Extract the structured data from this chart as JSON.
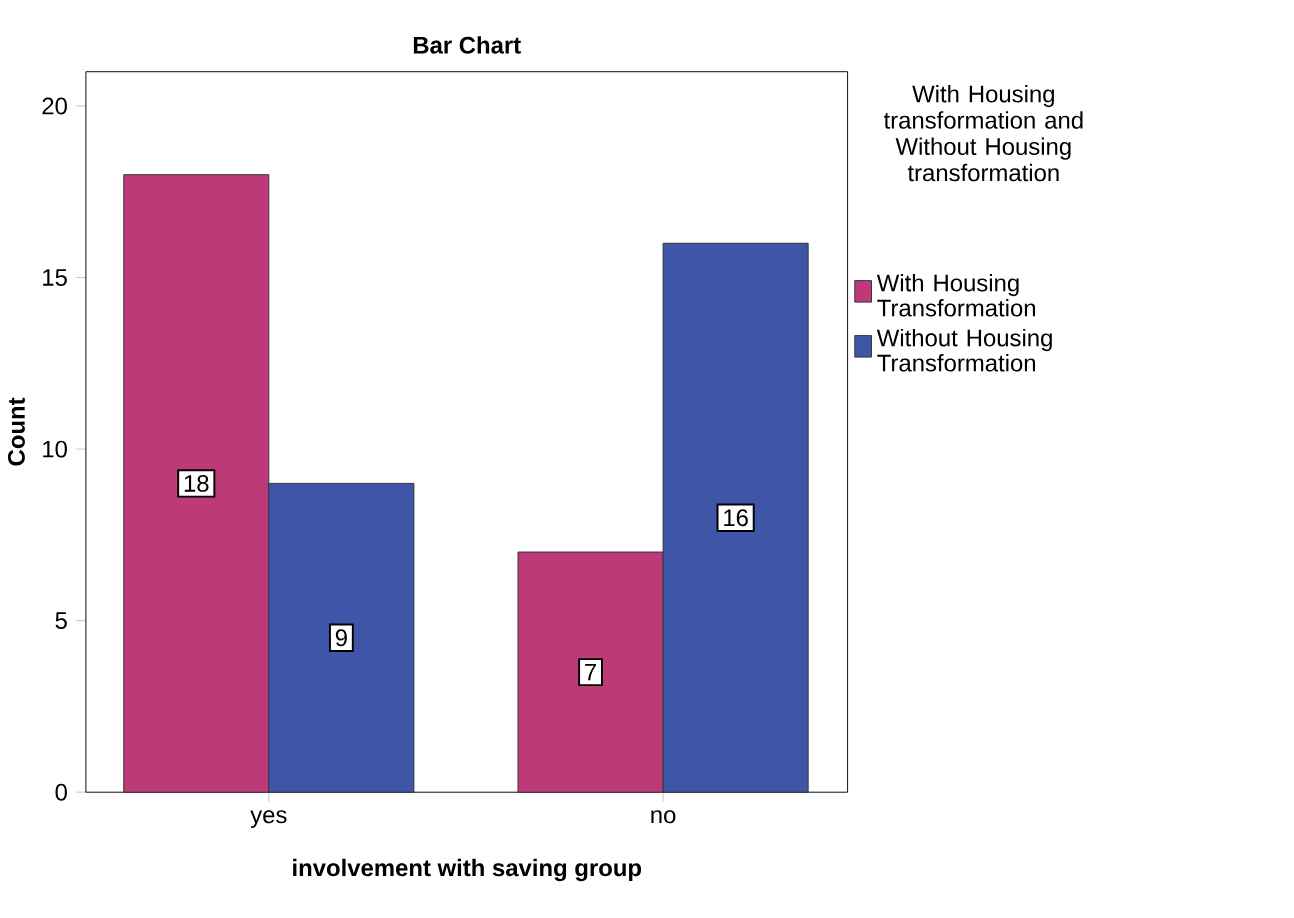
{
  "chart_data": {
    "type": "bar",
    "title": "Bar Chart",
    "xlabel": "involvement with saving group",
    "ylabel": "Count",
    "legend_title": "With Housing transformation and Without Housing transformation",
    "categories": [
      "yes",
      "no"
    ],
    "series": [
      {
        "name": "With Housing Transformation",
        "color": "#bc3a77",
        "values": [
          18,
          7
        ]
      },
      {
        "name": "Without Housing Transformation",
        "color": "#3f56a8",
        "values": [
          9,
          16
        ]
      }
    ],
    "ylim": [
      0,
      21
    ],
    "yticks": [
      0,
      5,
      10,
      15,
      20
    ],
    "grid": false,
    "legend": "right",
    "data_labels": true
  }
}
